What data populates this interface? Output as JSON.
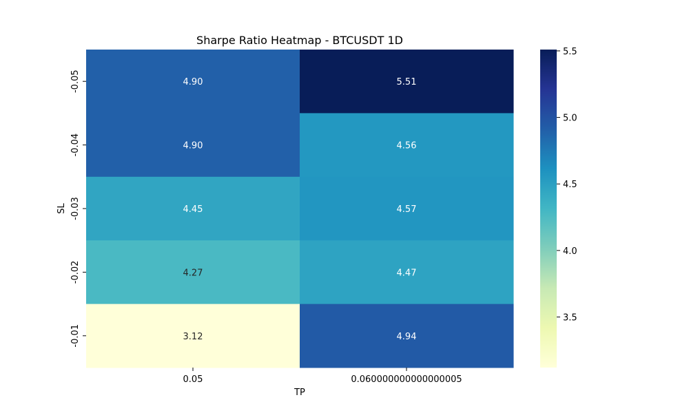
{
  "chart_data": {
    "type": "heatmap",
    "title": "Sharpe Ratio Heatmap - BTCUSDT 1D",
    "xlabel": "TP",
    "ylabel": "SL",
    "x_categories": [
      "0.05",
      "0.060000000000000005"
    ],
    "y_categories": [
      "-0.05",
      "-0.04",
      "-0.03",
      "-0.02",
      "-0.01"
    ],
    "values": [
      [
        4.9,
        5.51
      ],
      [
        4.9,
        4.56
      ],
      [
        4.45,
        4.57
      ],
      [
        4.27,
        4.47
      ],
      [
        3.12,
        4.94
      ]
    ],
    "cell_labels": [
      [
        "4.90",
        "5.51"
      ],
      [
        "4.90",
        "4.56"
      ],
      [
        "4.45",
        "4.57"
      ],
      [
        "4.27",
        "4.47"
      ],
      [
        "3.12",
        "4.94"
      ]
    ],
    "colormap": "YlGnBu",
    "colorbar": {
      "vmin": 3.12,
      "vmax": 5.51,
      "ticks": [
        3.5,
        4.0,
        4.5,
        5.0,
        5.5
      ],
      "tick_labels": [
        "3.5",
        "4.0",
        "4.5",
        "5.0",
        "5.5"
      ]
    }
  }
}
